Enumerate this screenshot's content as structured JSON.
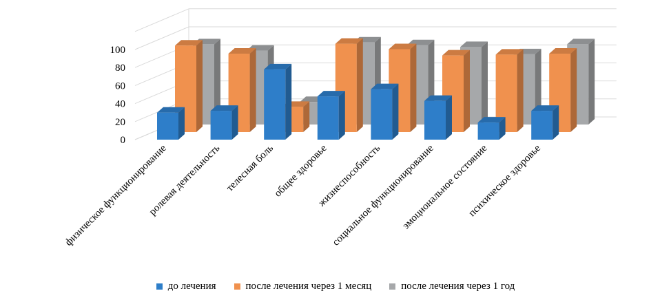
{
  "chart_data": {
    "type": "bar",
    "subtype": "3d-clustered-column",
    "title": "",
    "xlabel": "",
    "ylabel": "",
    "ylim": [
      0,
      100
    ],
    "yticks": [
      0,
      20,
      40,
      60,
      80,
      100
    ],
    "grid": true,
    "legend_position": "bottom",
    "categories": [
      "физическое функционирование",
      "ролевая деятельность",
      "телесная боль",
      "общее здоровье",
      "жизнеспособность",
      "социальное функционирование",
      "эмоциональное состояние",
      "психическое здоровье"
    ],
    "series": [
      {
        "name": "до лечения",
        "color": "#2E7EC9",
        "values": [
          30,
          32,
          78,
          48,
          56,
          43,
          19,
          32
        ]
      },
      {
        "name": "после лечения через 1 месяц",
        "color": "#F0914E",
        "values": [
          96,
          87,
          28,
          98,
          92,
          85,
          86,
          87
        ]
      },
      {
        "name": "после лечения через 1 год",
        "color": "#A6A8AA",
        "values": [
          89,
          82,
          25,
          91,
          88,
          86,
          78,
          89
        ]
      }
    ]
  }
}
